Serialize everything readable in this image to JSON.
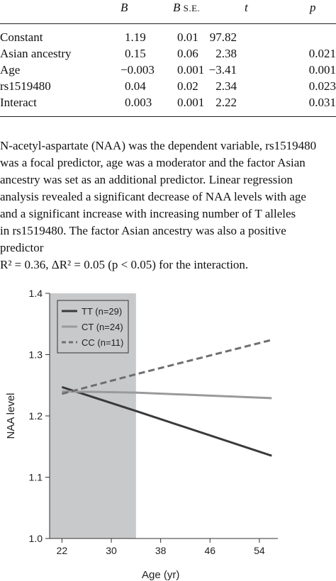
{
  "table": {
    "headers": {
      "label": "",
      "b": "B",
      "bse": "B S.E.",
      "t": "t",
      "p": "p"
    },
    "rows": [
      {
        "label": "Constant",
        "b": "1.19",
        "bse": "0.01",
        "t": "97.82",
        "p": ""
      },
      {
        "label": "Asian ancestry",
        "b": "0.15",
        "bse": "0.06",
        "t": "2.38",
        "p": "0.021"
      },
      {
        "label": "Age",
        "b": "−0.003",
        "bse": "0.001",
        "t": "−3.41",
        "p": "0.001"
      },
      {
        "label": "rs1519480",
        "b": "0.04",
        "bse": "0.02",
        "t": "2.34",
        "p": "0.023"
      },
      {
        "label": "Interact",
        "b": "0.003",
        "bse": "0.001",
        "t": "2.22",
        "p": "0.031"
      }
    ]
  },
  "note": {
    "lines": [
      "N-acetyl-aspartate (NAA) was the dependent variable, rs1519480",
      "was a focal predictor, age was a moderator and the factor Asian",
      "ancestry was set as an additional predictor. Linear regression",
      "analysis revealed a significant decrease of NAA levels with age",
      "and a significant increase with increasing number of T alleles",
      "in rs1519480. The factor Asian ancestry was also a positive",
      "predictor",
      "R² = 0.36, ΔR² = 0.05 (p < 0.05) for the interaction."
    ]
  },
  "chart_data": {
    "type": "line",
    "title": "",
    "xlabel": "Age (yr)",
    "ylabel": "NAA level",
    "xlim": [
      20,
      57
    ],
    "ylim": [
      1.0,
      1.4
    ],
    "xticks": [
      22,
      30,
      38,
      46,
      54
    ],
    "yticks": [
      1.0,
      1.1,
      1.2,
      1.3,
      1.4
    ],
    "shaded_region": {
      "x": [
        20,
        34
      ],
      "color": "#c8c9cb"
    },
    "legend_position": "top-left",
    "series": [
      {
        "name": "TT (n=29)",
        "style": "solid",
        "color": "#3a3a3c",
        "x": [
          22,
          34,
          56
        ],
        "y": [
          1.247,
          1.208,
          1.135
        ]
      },
      {
        "name": "CT (n=24)",
        "style": "solid",
        "color": "#9a9a9c",
        "x": [
          22,
          34,
          56
        ],
        "y": [
          1.24,
          1.238,
          1.229
        ]
      },
      {
        "name": "CC (n=11)",
        "style": "dashed",
        "color": "#6f6f71",
        "x": [
          22,
          34,
          56
        ],
        "y": [
          1.236,
          1.268,
          1.324
        ]
      }
    ]
  }
}
